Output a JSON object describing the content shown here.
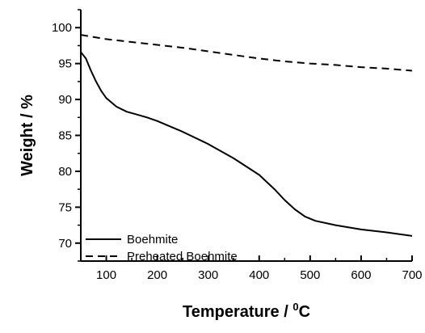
{
  "chart_data": {
    "type": "line",
    "title": "",
    "xlabel": "Temperature / ",
    "xlabel_sup": "0",
    "xlabel_unit": "C",
    "ylabel": "Weight / %",
    "xlim": [
      50,
      700
    ],
    "ylim": [
      67.5,
      102.5
    ],
    "x_ticks": [
      100,
      200,
      300,
      400,
      500,
      600,
      700
    ],
    "y_ticks": [
      70,
      75,
      80,
      85,
      90,
      95,
      100
    ],
    "grid": false,
    "legend_position": "bottom-left",
    "series": [
      {
        "name": "Boehmite",
        "style": "solid",
        "color": "#000000",
        "points": [
          [
            50,
            96.6
          ],
          [
            60,
            95.7
          ],
          [
            70,
            94.0
          ],
          [
            80,
            92.5
          ],
          [
            90,
            91.2
          ],
          [
            100,
            90.2
          ],
          [
            120,
            89.0
          ],
          [
            140,
            88.3
          ],
          [
            160,
            87.9
          ],
          [
            180,
            87.5
          ],
          [
            200,
            87.0
          ],
          [
            250,
            85.5
          ],
          [
            300,
            83.8
          ],
          [
            350,
            81.8
          ],
          [
            400,
            79.5
          ],
          [
            430,
            77.5
          ],
          [
            450,
            76.0
          ],
          [
            470,
            74.7
          ],
          [
            490,
            73.7
          ],
          [
            510,
            73.1
          ],
          [
            550,
            72.5
          ],
          [
            600,
            71.9
          ],
          [
            650,
            71.5
          ],
          [
            700,
            71.0
          ]
        ]
      },
      {
        "name": "Preheated Boehmite",
        "style": "dashed",
        "color": "#000000",
        "points": [
          [
            50,
            99.0
          ],
          [
            100,
            98.4
          ],
          [
            150,
            98.0
          ],
          [
            200,
            97.6
          ],
          [
            250,
            97.2
          ],
          [
            300,
            96.7
          ],
          [
            350,
            96.2
          ],
          [
            400,
            95.7
          ],
          [
            450,
            95.3
          ],
          [
            500,
            95.0
          ],
          [
            550,
            94.8
          ],
          [
            600,
            94.5
          ],
          [
            650,
            94.3
          ],
          [
            700,
            94.0
          ]
        ]
      }
    ]
  }
}
